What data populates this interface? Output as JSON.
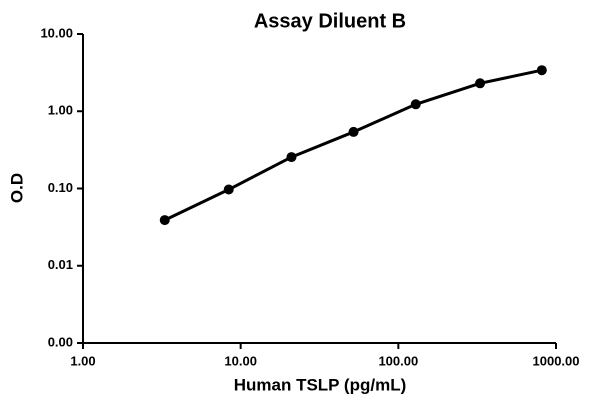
{
  "chart_data": {
    "type": "line",
    "title": "Assay Diluent B",
    "x_label": "Human TSLP (pg/mL)",
    "y_label": "O.D",
    "x": [
      3.3,
      8.4,
      21,
      52,
      129,
      330,
      813
    ],
    "series": [
      {
        "name": "Assay Diluent B",
        "color": "#000000",
        "values": [
          0.039,
          0.097,
          0.255,
          0.54,
          1.23,
          2.3,
          3.4
        ]
      }
    ],
    "xlim": [
      1,
      1000
    ],
    "ylim": [
      0.001,
      10
    ],
    "xticks": [
      {
        "value": 1,
        "label": "1.00"
      },
      {
        "value": 10,
        "label": "10.00"
      },
      {
        "value": 100,
        "label": "100.00"
      },
      {
        "value": 1000,
        "label": "1000.00"
      }
    ],
    "yticks": [
      {
        "value": 0.001,
        "label": "0.00"
      },
      {
        "value": 0.01,
        "label": "0.01"
      },
      {
        "value": 0.1,
        "label": "0.10"
      },
      {
        "value": 1,
        "label": "1.00"
      },
      {
        "value": 10,
        "label": "10.00"
      }
    ],
    "x_log": true,
    "y_log": true,
    "grid": false
  }
}
